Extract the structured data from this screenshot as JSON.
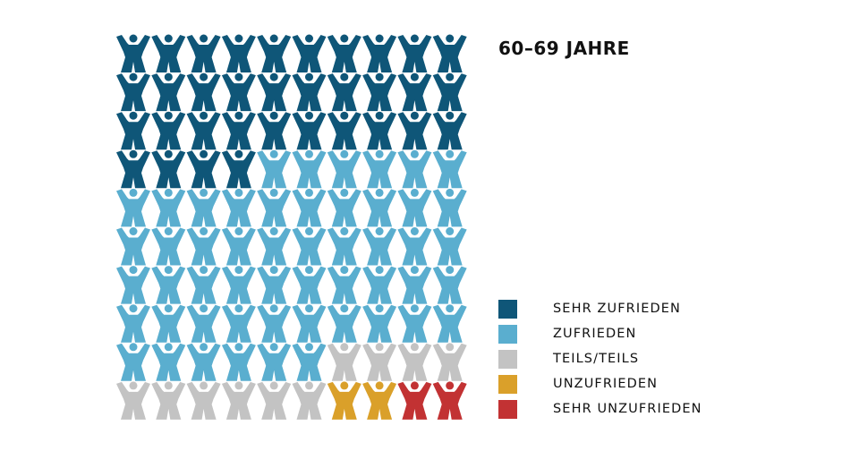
{
  "chart_data": {
    "type": "pictogram",
    "title": "60–69 JAHRE",
    "unit_count": 100,
    "grid_columns": 10,
    "categories": [
      "SEHR ZUFRIEDEN",
      "ZUFRIEDEN",
      "TEILS/TEILS",
      "UNZUFRIEDEN",
      "SEHR UNZUFRIEDEN"
    ],
    "values": [
      34,
      52,
      10,
      2,
      2
    ],
    "colors": [
      "#0f5678",
      "#5aaecf",
      "#c3c3c3",
      "#daa02a",
      "#c23233"
    ],
    "legend_position": "bottom-right"
  }
}
